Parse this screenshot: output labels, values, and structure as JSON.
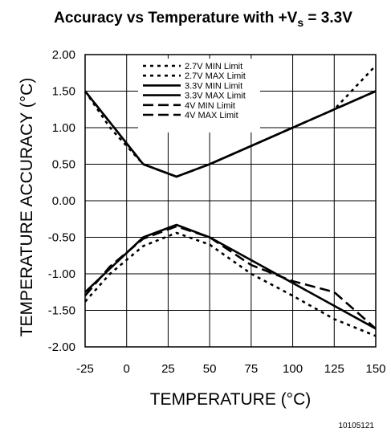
{
  "figure_id": "10105121",
  "chart_data": {
    "type": "line",
    "title": "Accuracy vs Temperature with +Vs = 3.3V",
    "title_main": "Accuracy vs Temperature with +V",
    "title_sub": "s",
    "title_tail": " = 3.3V",
    "xlabel": "TEMPERATURE (°C)",
    "ylabel": "TEMPERATURE  ACCURACY (°C)",
    "xlim": [
      -25,
      150
    ],
    "ylim": [
      -2.0,
      2.0
    ],
    "xticks": [
      -25,
      0,
      25,
      50,
      75,
      100,
      125,
      150
    ],
    "xtick_labels": [
      "-25",
      "0",
      "25",
      "50",
      "75",
      "100",
      "125",
      "150"
    ],
    "yticks": [
      2.0,
      1.5,
      1.0,
      0.5,
      0.0,
      -0.5,
      -1.0,
      -1.5,
      -2.0
    ],
    "ytick_labels": [
      "2.00",
      "1.50",
      "1.00",
      "0.50",
      "0.00",
      "-0.50",
      "-1.00",
      "-1.50",
      "-2.00"
    ],
    "grid": true,
    "legend_position": "top-center",
    "series": [
      {
        "name": "2.7V MIN Limit",
        "style": "dotted",
        "x": [
          -25,
          -10,
          10,
          30,
          50,
          75,
          100,
          125,
          150
        ],
        "y": [
          -1.38,
          -1.0,
          -0.62,
          -0.44,
          -0.6,
          -1.0,
          -1.3,
          -1.62,
          -1.85
        ]
      },
      {
        "name": "2.7V MAX Limit",
        "style": "dotted",
        "x": [
          -25,
          -10,
          10,
          30,
          50,
          75,
          100,
          125,
          150
        ],
        "y": [
          1.5,
          1.0,
          0.5,
          0.33,
          0.5,
          0.75,
          1.0,
          1.25,
          1.85
        ]
      },
      {
        "name": "3.3V MIN Limit",
        "style": "solid",
        "x": [
          -25,
          10,
          30,
          50,
          150
        ],
        "y": [
          -1.25,
          -0.5,
          -0.33,
          -0.5,
          -1.75
        ]
      },
      {
        "name": "3.3V MAX Limit",
        "style": "solid",
        "x": [
          -25,
          10,
          30,
          50,
          150
        ],
        "y": [
          1.5,
          0.5,
          0.33,
          0.5,
          1.5
        ]
      },
      {
        "name": "4V MIN Limit",
        "style": "dashed",
        "x": [
          -25,
          -10,
          10,
          30,
          50,
          75,
          100,
          125,
          150
        ],
        "y": [
          -1.3,
          -0.9,
          -0.52,
          -0.35,
          -0.5,
          -0.88,
          -1.1,
          -1.25,
          -1.75
        ]
      },
      {
        "name": "4V MAX Limit",
        "style": "dashed",
        "x": [
          -25,
          10,
          30,
          50,
          150
        ],
        "y": [
          1.5,
          0.5,
          0.33,
          0.5,
          1.5
        ]
      }
    ]
  }
}
